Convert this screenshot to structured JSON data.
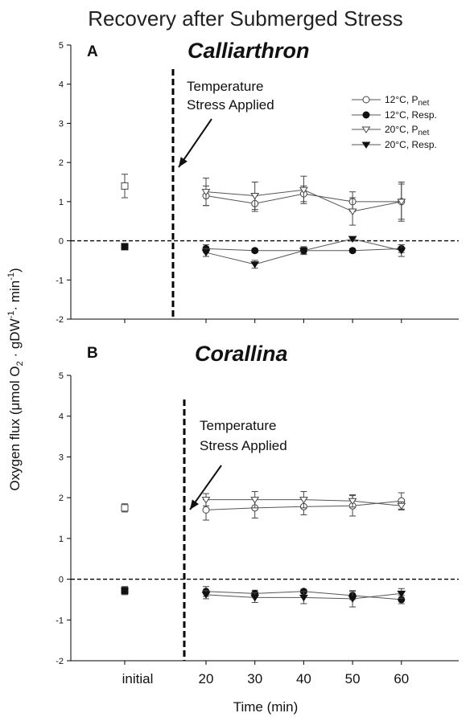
{
  "figure": {
    "title": "Recovery after Submerged Stress",
    "ylabel": "Oxygen flux (μmol O",
    "ylabel_sub2": "2",
    "ylabel_mid": " · gDW",
    "ylabel_sup1": "-1",
    "ylabel_mid2": "· min",
    "ylabel_sup2": "-1",
    "ylabel_end": ")",
    "xlabel": "Time (min)",
    "x_tick_labels": [
      "initial",
      "20",
      "30",
      "40",
      "50",
      "60"
    ]
  },
  "legend": [
    {
      "label_main": "12°C, P",
      "label_sub": "net",
      "marker": "circle",
      "filled": false
    },
    {
      "label_main": "12°C, Resp.",
      "label_sub": "",
      "marker": "circle",
      "filled": true
    },
    {
      "label_main": "20°C, P",
      "label_sub": "net",
      "marker": "triangle-down",
      "filled": false
    },
    {
      "label_main": "20°C, Resp.",
      "label_sub": "",
      "marker": "triangle-down",
      "filled": true
    }
  ],
  "chart_data": [
    {
      "type": "line",
      "panel": "A",
      "title": "Calliarthron",
      "annotation_line1": "Temperature",
      "annotation_line2": "Stress Applied",
      "ylim": [
        -2,
        5
      ],
      "yticks": [
        "-2",
        "-1",
        "0",
        "1",
        "2",
        "3",
        "4",
        "5"
      ],
      "x": [
        20,
        30,
        40,
        50,
        60
      ],
      "initial": [
        {
          "marker": "square",
          "filled": false,
          "value": 1.4,
          "error": 0.3
        },
        {
          "marker": "square",
          "filled": true,
          "value": -0.15,
          "error": 0.07
        }
      ],
      "series": [
        {
          "name": "12°C, P net",
          "marker": "circle",
          "filled": false,
          "values": [
            1.15,
            0.95,
            1.2,
            1.0,
            1.0
          ],
          "errors": [
            0.25,
            0.2,
            0.2,
            0.25,
            0.5
          ]
        },
        {
          "name": "12°C, Resp.",
          "marker": "circle",
          "filled": true,
          "values": [
            -0.2,
            -0.25,
            -0.25,
            -0.25,
            -0.2
          ],
          "errors": [
            0.1,
            0.05,
            0.08,
            0.05,
            0.1
          ]
        },
        {
          "name": "20°C, P net",
          "marker": "triangle-down",
          "filled": false,
          "values": [
            1.25,
            1.15,
            1.3,
            0.75,
            1.0
          ],
          "errors": [
            0.35,
            0.35,
            0.35,
            0.35,
            0.45
          ]
        },
        {
          "name": "20°C, Resp.",
          "marker": "triangle-down",
          "filled": true,
          "values": [
            -0.3,
            -0.6,
            -0.25,
            0.05,
            -0.25
          ],
          "errors": [
            0.1,
            0.1,
            0.1,
            0.05,
            0.15
          ]
        }
      ]
    },
    {
      "type": "line",
      "panel": "B",
      "title": "Corallina",
      "annotation_line1": "Temperature",
      "annotation_line2": "Stress Applied",
      "ylim": [
        -2,
        5
      ],
      "yticks": [
        "-2",
        "-1",
        "0",
        "1",
        "2",
        "3",
        "4",
        "5"
      ],
      "x": [
        20,
        30,
        40,
        50,
        60
      ],
      "initial": [
        {
          "marker": "square",
          "filled": false,
          "value": 1.75,
          "error": 0.1
        },
        {
          "marker": "square",
          "filled": true,
          "value": -0.28,
          "error": 0.1
        }
      ],
      "series": [
        {
          "name": "12°C, P net",
          "marker": "circle",
          "filled": false,
          "values": [
            1.7,
            1.75,
            1.78,
            1.8,
            1.92
          ],
          "errors": [
            0.25,
            0.25,
            0.2,
            0.25,
            0.2
          ]
        },
        {
          "name": "12°C, Resp.",
          "marker": "circle",
          "filled": true,
          "values": [
            -0.3,
            -0.35,
            -0.3,
            -0.4,
            -0.5
          ],
          "errors": [
            0.12,
            0.08,
            0.05,
            0.1,
            0.1
          ]
        },
        {
          "name": "20°C, P net",
          "marker": "triangle-down",
          "filled": false,
          "values": [
            1.95,
            1.95,
            1.95,
            1.92,
            1.8
          ],
          "errors": [
            0.15,
            0.2,
            0.2,
            0.15,
            0.1
          ]
        },
        {
          "name": "20°C, Resp.",
          "marker": "triangle-down",
          "filled": true,
          "values": [
            -0.38,
            -0.45,
            -0.45,
            -0.48,
            -0.35
          ],
          "errors": [
            0.1,
            0.12,
            0.15,
            0.2,
            0.12
          ]
        }
      ]
    }
  ]
}
